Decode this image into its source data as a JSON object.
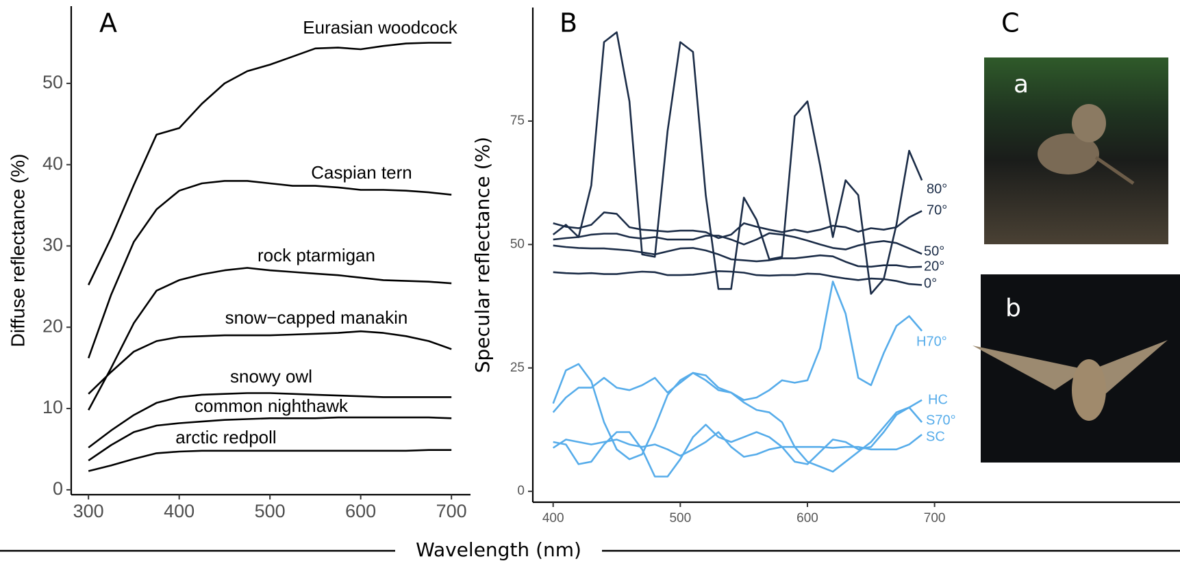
{
  "chart_data": [
    {
      "type": "line",
      "panel": "A",
      "ylabel": "Diffuse reflectance (%)",
      "x": [
        300,
        325,
        350,
        375,
        400,
        425,
        450,
        475,
        500,
        525,
        550,
        575,
        600,
        625,
        650,
        675,
        700
      ],
      "xlim": [
        281,
        721
      ],
      "ylim": [
        -0.6,
        59.5
      ],
      "xticks": [
        300,
        400,
        500,
        600,
        700
      ],
      "yticks": [
        0,
        10,
        20,
        30,
        40,
        50
      ],
      "series": [
        {
          "name": "Eurasian woodcock",
          "color": "#000000",
          "values": [
            25.2,
            31,
            37.5,
            43.7,
            44.5,
            47.5,
            50,
            51.5,
            52.3,
            53.3,
            54.3,
            54.4,
            54.2,
            54.6,
            54.9,
            55,
            55
          ]
        },
        {
          "name": "Caspian tern",
          "color": "#000000",
          "values": [
            16.2,
            24,
            30.5,
            34.5,
            36.8,
            37.7,
            38,
            38,
            37.7,
            37.4,
            37.4,
            37.2,
            36.9,
            36.9,
            36.8,
            36.6,
            36.3
          ]
        },
        {
          "name": "rock ptarmigan",
          "color": "#000000",
          "values": [
            9.8,
            15,
            20.5,
            24.5,
            25.8,
            26.5,
            27,
            27.3,
            27,
            26.8,
            26.6,
            26.4,
            26.1,
            25.8,
            25.7,
            25.6,
            25.4
          ]
        },
        {
          "name": "snow−capped manakin",
          "color": "#000000",
          "values": [
            11.8,
            14.5,
            17,
            18.3,
            18.8,
            18.9,
            19,
            19,
            19,
            19.1,
            19.2,
            19.3,
            19.5,
            19.3,
            18.9,
            18.3,
            17.3
          ]
        },
        {
          "name": "snowy owl",
          "color": "#000000",
          "values": [
            5.2,
            7.3,
            9.2,
            10.7,
            11.4,
            11.7,
            11.8,
            11.9,
            11.9,
            11.8,
            11.7,
            11.6,
            11.5,
            11.4,
            11.4,
            11.4,
            11.4
          ]
        },
        {
          "name": "common nighthawk",
          "color": "#000000",
          "values": [
            3.6,
            5.5,
            7.1,
            7.9,
            8.2,
            8.4,
            8.6,
            8.7,
            8.8,
            8.8,
            8.8,
            8.9,
            8.9,
            8.9,
            8.9,
            8.9,
            8.8
          ]
        },
        {
          "name": "arctic redpoll",
          "color": "#000000",
          "values": [
            2.3,
            3,
            3.8,
            4.5,
            4.7,
            4.8,
            4.8,
            4.8,
            4.8,
            4.8,
            4.8,
            4.8,
            4.8,
            4.8,
            4.8,
            4.9,
            4.9
          ]
        }
      ]
    },
    {
      "type": "line",
      "panel": "B",
      "ylabel": "Specular reflectance (%)",
      "x": [
        400,
        410,
        420,
        430,
        440,
        450,
        460,
        470,
        480,
        490,
        500,
        510,
        520,
        530,
        540,
        550,
        560,
        570,
        580,
        590,
        600,
        610,
        620,
        630,
        640,
        650,
        660,
        670,
        680,
        690
      ],
      "xlim": [
        384,
        760
      ],
      "ylim": [
        -2.2,
        98
      ],
      "xticks": [
        400,
        500,
        600,
        700
      ],
      "yticks": [
        0,
        25,
        50,
        75
      ],
      "series": [
        {
          "name": "80°",
          "color": "#1b2c47",
          "values": [
            52,
            54,
            51.5,
            62,
            91,
            93,
            79,
            48,
            47.5,
            73,
            91,
            89,
            60,
            41,
            41,
            59.5,
            55,
            47,
            47.5,
            76,
            79,
            66,
            51.5,
            63,
            60,
            40,
            43,
            54,
            69,
            63
          ]
        },
        {
          "name": "70°",
          "color": "#1b2c47",
          "values": [
            54.3,
            53.6,
            53.3,
            54,
            56.5,
            56.2,
            53.5,
            53,
            52.8,
            52.6,
            52.8,
            52.8,
            52.5,
            51.3,
            52,
            54.3,
            53.6,
            53,
            52.5,
            53,
            52.5,
            53,
            53.8,
            53.5,
            52.6,
            53.3,
            53,
            53.5,
            55.5,
            56.8
          ]
        },
        {
          "name": "50°",
          "color": "#1b2c47",
          "values": [
            51,
            51.3,
            51.5,
            52,
            52.2,
            52.2,
            51.5,
            51.2,
            51.5,
            51,
            51,
            51,
            51.8,
            51.8,
            51,
            50,
            51,
            52.3,
            52,
            51.5,
            50.8,
            50,
            49.3,
            49,
            49.8,
            50.4,
            50.7,
            50.3,
            49.2,
            48.1
          ]
        },
        {
          "name": "20°",
          "color": "#1b2c47",
          "values": [
            49.8,
            49.5,
            49.3,
            49.2,
            49.2,
            49,
            48.8,
            48.4,
            48,
            48.6,
            49.2,
            49.3,
            48.8,
            48,
            47,
            46.8,
            46.6,
            46.8,
            47.2,
            47.2,
            47.5,
            47.8,
            47.6,
            46.5,
            45.6,
            45.5,
            45.8,
            45.8,
            45.4,
            45.5
          ]
        },
        {
          "name": "0°",
          "color": "#1b2c47",
          "values": [
            44.4,
            44.2,
            44.1,
            44.2,
            44,
            44,
            44.3,
            44.5,
            44.4,
            43.8,
            43.8,
            43.9,
            44.2,
            44.6,
            44.5,
            44.3,
            43.8,
            43.7,
            43.8,
            43.8,
            44.1,
            44,
            43.5,
            43.1,
            42.8,
            43.1,
            43,
            42.6,
            42,
            41.8
          ]
        },
        {
          "name": "H70°",
          "color": "#56acea",
          "values": [
            17.8,
            24.5,
            25.8,
            22.3,
            14,
            8.5,
            6.5,
            7.5,
            13,
            19.5,
            22.5,
            24,
            22.5,
            20.5,
            20,
            18.5,
            19,
            20.5,
            22.5,
            22,
            22.5,
            29,
            42.5,
            36,
            23,
            21.5,
            28,
            33.5,
            35.5,
            32.5
          ]
        },
        {
          "name": "HC",
          "color": "#56acea",
          "values": [
            16,
            19,
            21,
            21,
            23,
            21,
            20.5,
            21.5,
            23,
            20,
            22,
            24,
            23.5,
            21,
            20,
            18,
            16.5,
            16,
            14,
            9,
            6,
            5,
            4,
            6,
            8,
            10,
            13,
            16,
            17,
            18.5
          ]
        },
        {
          "name": "S70°",
          "color": "#56acea",
          "values": [
            10,
            9.5,
            5.5,
            6,
            9.5,
            12,
            12,
            8.5,
            3,
            3,
            6.5,
            11,
            13.5,
            11,
            10,
            11,
            12,
            11,
            9,
            6,
            5.5,
            8,
            10.5,
            10,
            8.5,
            9,
            12,
            15.5,
            17,
            14
          ]
        },
        {
          "name": "SC",
          "color": "#56acea",
          "values": [
            8.8,
            10.5,
            10,
            9.5,
            10,
            10.5,
            9.5,
            9,
            9.5,
            8.5,
            7.2,
            8.5,
            10,
            12,
            9,
            7,
            7.5,
            8.5,
            9,
            9,
            9,
            9,
            8.8,
            9,
            9,
            8.5,
            8.5,
            8.5,
            9.5,
            11.5
          ]
        }
      ]
    }
  ],
  "xlabel": "Wavelength (nm)",
  "panel_c": {
    "label": "C",
    "images": [
      {
        "label": "a"
      },
      {
        "label": "b"
      }
    ]
  }
}
